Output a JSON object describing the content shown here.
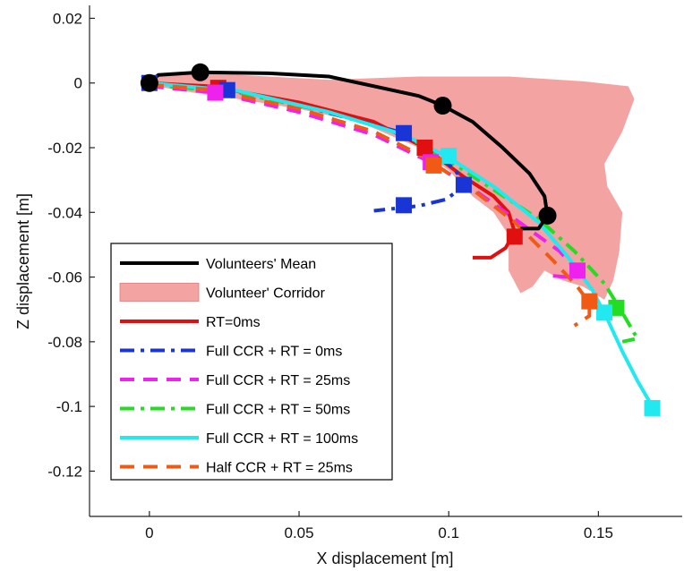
{
  "chart_data": {
    "type": "line",
    "xlabel": "X displacement [m]",
    "ylabel": "Z displacement [m]",
    "xlim": [
      -0.02,
      0.178
    ],
    "ylim": [
      -0.134,
      0.024
    ],
    "x_ticks": [
      0,
      0.05,
      0.1,
      0.15
    ],
    "x_tick_labels": [
      "0",
      "0.05",
      "0.1",
      "0.15"
    ],
    "y_ticks": [
      0.02,
      0,
      -0.02,
      -0.04,
      -0.06,
      -0.08,
      -0.1,
      -0.12
    ],
    "y_tick_labels": [
      "0.02",
      "0",
      "-0.02",
      "-0.04",
      "-0.06",
      "-0.08",
      "-0.1",
      "-0.12"
    ],
    "grid": false,
    "legend_position": "bottom-left",
    "corridor": {
      "name": "Volunteer' Corridor",
      "color": "#f4a3a3",
      "points": [
        [
          -0.003,
          0.002
        ],
        [
          0.01,
          0.003
        ],
        [
          0.03,
          0.0025
        ],
        [
          0.06,
          0.001
        ],
        [
          0.09,
          0.002
        ],
        [
          0.12,
          0.002
        ],
        [
          0.145,
          0.0005
        ],
        [
          0.16,
          -0.001
        ],
        [
          0.162,
          -0.005
        ],
        [
          0.158,
          -0.015
        ],
        [
          0.152,
          -0.025
        ],
        [
          0.153,
          -0.032
        ],
        [
          0.158,
          -0.04
        ],
        [
          0.157,
          -0.052
        ],
        [
          0.155,
          -0.061
        ],
        [
          0.152,
          -0.067
        ],
        [
          0.145,
          -0.063
        ],
        [
          0.138,
          -0.061
        ],
        [
          0.132,
          -0.058
        ],
        [
          0.128,
          -0.063
        ],
        [
          0.124,
          -0.065
        ],
        [
          0.12,
          -0.058
        ],
        [
          0.12,
          -0.047
        ],
        [
          0.115,
          -0.04
        ],
        [
          0.108,
          -0.035
        ],
        [
          0.1,
          -0.027
        ],
        [
          0.09,
          -0.02
        ],
        [
          0.07,
          -0.012
        ],
        [
          0.05,
          -0.008
        ],
        [
          0.03,
          -0.005
        ],
        [
          0.015,
          -0.003
        ],
        [
          0.002,
          -0.001
        ]
      ]
    },
    "series": [
      {
        "name": "Volunteers' Mean",
        "color": "#000000",
        "dash": "solid",
        "width": 4,
        "marker": "circle",
        "points": [
          [
            0,
            0
          ],
          [
            0.003,
            0.0025
          ],
          [
            0.017,
            0.0033
          ],
          [
            0.04,
            0.003
          ],
          [
            0.06,
            0.002
          ],
          [
            0.075,
            -0.001
          ],
          [
            0.09,
            -0.004
          ],
          [
            0.098,
            -0.007
          ],
          [
            0.108,
            -0.012
          ],
          [
            0.118,
            -0.02
          ],
          [
            0.127,
            -0.028
          ],
          [
            0.132,
            -0.035
          ],
          [
            0.133,
            -0.041
          ],
          [
            0.13,
            -0.045
          ],
          [
            0.124,
            -0.045
          ]
        ],
        "marker_points": [
          [
            0,
            0
          ],
          [
            0.017,
            0.0033
          ],
          [
            0.098,
            -0.007
          ],
          [
            0.133,
            -0.041
          ]
        ]
      },
      {
        "name": "RT=0ms",
        "color": "#e01010",
        "dash": "solid",
        "width": 4,
        "marker": "square",
        "points": [
          [
            0,
            0
          ],
          [
            0.02,
            -0.001
          ],
          [
            0.05,
            -0.006
          ],
          [
            0.075,
            -0.012
          ],
          [
            0.092,
            -0.02
          ],
          [
            0.105,
            -0.029
          ],
          [
            0.115,
            -0.035
          ],
          [
            0.12,
            -0.04
          ],
          [
            0.122,
            -0.046
          ],
          [
            0.119,
            -0.051
          ],
          [
            0.114,
            -0.054
          ],
          [
            0.108,
            -0.054
          ]
        ],
        "marker_points": [
          [
            0.023,
            -0.0015
          ],
          [
            0.092,
            -0.02
          ],
          [
            0.122,
            -0.0475
          ]
        ]
      },
      {
        "name": "Full CCR + RT = 0ms",
        "color": "#1a35d6",
        "dash": "dashdot",
        "width": 4,
        "marker": "square",
        "points": [
          [
            0,
            0
          ],
          [
            0.026,
            -0.0022
          ],
          [
            0.055,
            -0.008
          ],
          [
            0.085,
            -0.0155
          ],
          [
            0.098,
            -0.023
          ],
          [
            0.104,
            -0.029
          ],
          [
            0.105,
            -0.032
          ],
          [
            0.099,
            -0.036
          ],
          [
            0.09,
            -0.038
          ],
          [
            0.08,
            -0.039
          ],
          [
            0.075,
            -0.0395
          ]
        ],
        "marker_points": [
          [
            0,
            0
          ],
          [
            0.026,
            -0.0022
          ],
          [
            0.085,
            -0.0155
          ],
          [
            0.105,
            -0.0315
          ],
          [
            0.085,
            -0.0378
          ]
        ]
      },
      {
        "name": "Full CCR + RT = 25ms",
        "color": "#ee22ee",
        "dash": "dash",
        "width": 4,
        "marker": "square",
        "points": [
          [
            0,
            -0.001
          ],
          [
            0.022,
            -0.003
          ],
          [
            0.05,
            -0.009
          ],
          [
            0.075,
            -0.016
          ],
          [
            0.095,
            -0.025
          ],
          [
            0.11,
            -0.034
          ],
          [
            0.125,
            -0.044
          ],
          [
            0.137,
            -0.052
          ],
          [
            0.143,
            -0.058
          ],
          [
            0.14,
            -0.06
          ],
          [
            0.133,
            -0.0595
          ]
        ],
        "marker_points": [
          [
            0.022,
            -0.003
          ],
          [
            0.094,
            -0.0245
          ],
          [
            0.143,
            -0.058
          ]
        ]
      },
      {
        "name": "Full CCR + RT = 50ms",
        "color": "#22dd22",
        "dash": "dashdot",
        "width": 4,
        "marker": "square",
        "points": [
          [
            0,
            -0.0005
          ],
          [
            0.03,
            -0.003
          ],
          [
            0.06,
            -0.009
          ],
          [
            0.085,
            -0.016
          ],
          [
            0.1,
            -0.024
          ],
          [
            0.115,
            -0.033
          ],
          [
            0.13,
            -0.042
          ],
          [
            0.142,
            -0.052
          ],
          [
            0.152,
            -0.062
          ],
          [
            0.158,
            -0.071
          ],
          [
            0.163,
            -0.079
          ],
          [
            0.158,
            -0.08
          ]
        ],
        "marker_points": [
          [
            0.156,
            -0.0695
          ]
        ]
      },
      {
        "name": "Full CCR + RT = 100ms",
        "color": "#22e8f0",
        "dash": "solid",
        "width": 4,
        "marker": "square",
        "points": [
          [
            0,
            0
          ],
          [
            0.03,
            -0.0025
          ],
          [
            0.06,
            -0.009
          ],
          [
            0.085,
            -0.016
          ],
          [
            0.1,
            -0.023
          ],
          [
            0.115,
            -0.032
          ],
          [
            0.13,
            -0.043
          ],
          [
            0.14,
            -0.054
          ],
          [
            0.148,
            -0.064
          ],
          [
            0.153,
            -0.073
          ],
          [
            0.158,
            -0.083
          ],
          [
            0.163,
            -0.092
          ],
          [
            0.168,
            -0.1
          ]
        ],
        "marker_points": [
          [
            0.1,
            -0.0225
          ],
          [
            0.152,
            -0.071
          ],
          [
            0.168,
            -0.1005
          ]
        ]
      },
      {
        "name": "Half CCR + RT = 25ms",
        "color": "#f05a14",
        "dash": "dash",
        "width": 4,
        "marker": "square",
        "points": [
          [
            0,
            -0.0005
          ],
          [
            0.02,
            -0.002
          ],
          [
            0.05,
            -0.008
          ],
          [
            0.075,
            -0.015
          ],
          [
            0.092,
            -0.023
          ],
          [
            0.108,
            -0.033
          ],
          [
            0.122,
            -0.043
          ],
          [
            0.135,
            -0.055
          ],
          [
            0.143,
            -0.063
          ],
          [
            0.147,
            -0.068
          ],
          [
            0.147,
            -0.072
          ],
          [
            0.142,
            -0.075
          ]
        ],
        "marker_points": [
          [
            0.095,
            -0.0255
          ],
          [
            0.147,
            -0.0675
          ]
        ]
      }
    ],
    "legend": {
      "entries": [
        {
          "label": "Volunteers' Mean",
          "color": "#000000",
          "dash": "solid",
          "kind": "line"
        },
        {
          "label": "Volunteer' Corridor",
          "color": "#f4a3a3",
          "dash": "solid",
          "kind": "patch"
        },
        {
          "label": "RT=0ms",
          "color": "#e01010",
          "dash": "solid",
          "kind": "line"
        },
        {
          "label": "Full CCR + RT = 0ms",
          "color": "#1a35d6",
          "dash": "dashdot",
          "kind": "line"
        },
        {
          "label": "Full CCR + RT = 25ms",
          "color": "#ee22ee",
          "dash": "dash",
          "kind": "line"
        },
        {
          "label": "Full CCR + RT = 50ms",
          "color": "#22dd22",
          "dash": "dashdot",
          "kind": "line"
        },
        {
          "label": "Full CCR + RT = 100ms",
          "color": "#22e8f0",
          "dash": "solid",
          "kind": "line"
        },
        {
          "label": "Half CCR + RT = 25ms",
          "color": "#f05a14",
          "dash": "dash",
          "kind": "line"
        }
      ]
    }
  }
}
